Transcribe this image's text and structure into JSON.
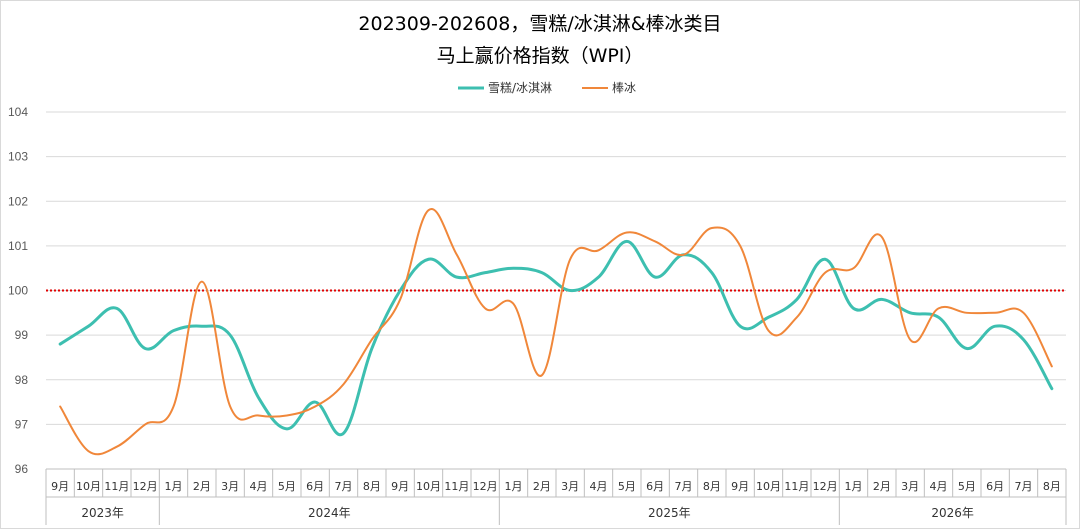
{
  "chart_data": {
    "type": "line",
    "title_line1": "202309-202608，雪糕/冰淇淋&棒冰类目",
    "title_line2": "马上赢价格指数（WPI）",
    "ylim": [
      96,
      104
    ],
    "yticks": [
      96,
      97,
      98,
      99,
      100,
      101,
      102,
      103,
      104
    ],
    "reference_line": 100,
    "grid": "horizontal",
    "legend_position": "top",
    "categories": [
      "9月",
      "10月",
      "11月",
      "12月",
      "1月",
      "2月",
      "3月",
      "4月",
      "5月",
      "6月",
      "7月",
      "8月",
      "9月",
      "10月",
      "11月",
      "12月",
      "1月",
      "2月",
      "3月",
      "4月",
      "5月",
      "6月",
      "7月",
      "8月",
      "9月",
      "10月",
      "11月",
      "12月",
      "1月",
      "2月",
      "3月",
      "4月",
      "5月",
      "6月",
      "7月",
      "8月"
    ],
    "years": [
      {
        "label": "2023年",
        "count": 4
      },
      {
        "label": "2024年",
        "count": 12
      },
      {
        "label": "2025年",
        "count": 12
      },
      {
        "label": "2026年",
        "count": 8
      }
    ],
    "series": [
      {
        "name": "雪糕/冰淇淋",
        "color": "#3DBFB0",
        "values": [
          98.8,
          99.2,
          99.6,
          98.7,
          99.1,
          99.2,
          99.0,
          97.6,
          96.9,
          97.5,
          96.8,
          98.7,
          100.0,
          100.7,
          100.3,
          100.4,
          100.5,
          100.4,
          100.0,
          100.3,
          101.1,
          100.3,
          100.8,
          100.4,
          99.2,
          99.4,
          99.8,
          100.7,
          99.6,
          99.8,
          99.5,
          99.4,
          98.7,
          99.2,
          98.9,
          97.8
        ]
      },
      {
        "name": "棒冰",
        "color": "#F0873A",
        "values": [
          97.4,
          96.4,
          96.5,
          97.0,
          97.4,
          100.2,
          97.4,
          97.2,
          97.2,
          97.4,
          97.9,
          98.9,
          99.8,
          101.8,
          100.8,
          99.6,
          99.7,
          98.1,
          100.7,
          100.9,
          101.3,
          101.1,
          100.8,
          101.4,
          101.0,
          99.1,
          99.4,
          100.4,
          100.5,
          101.2,
          98.9,
          99.6,
          99.5,
          99.5,
          99.5,
          98.3
        ]
      }
    ]
  },
  "colors": {
    "reference_line": "#E00000",
    "grid": "#D9D9D9",
    "axis": "#BFBFBF"
  }
}
